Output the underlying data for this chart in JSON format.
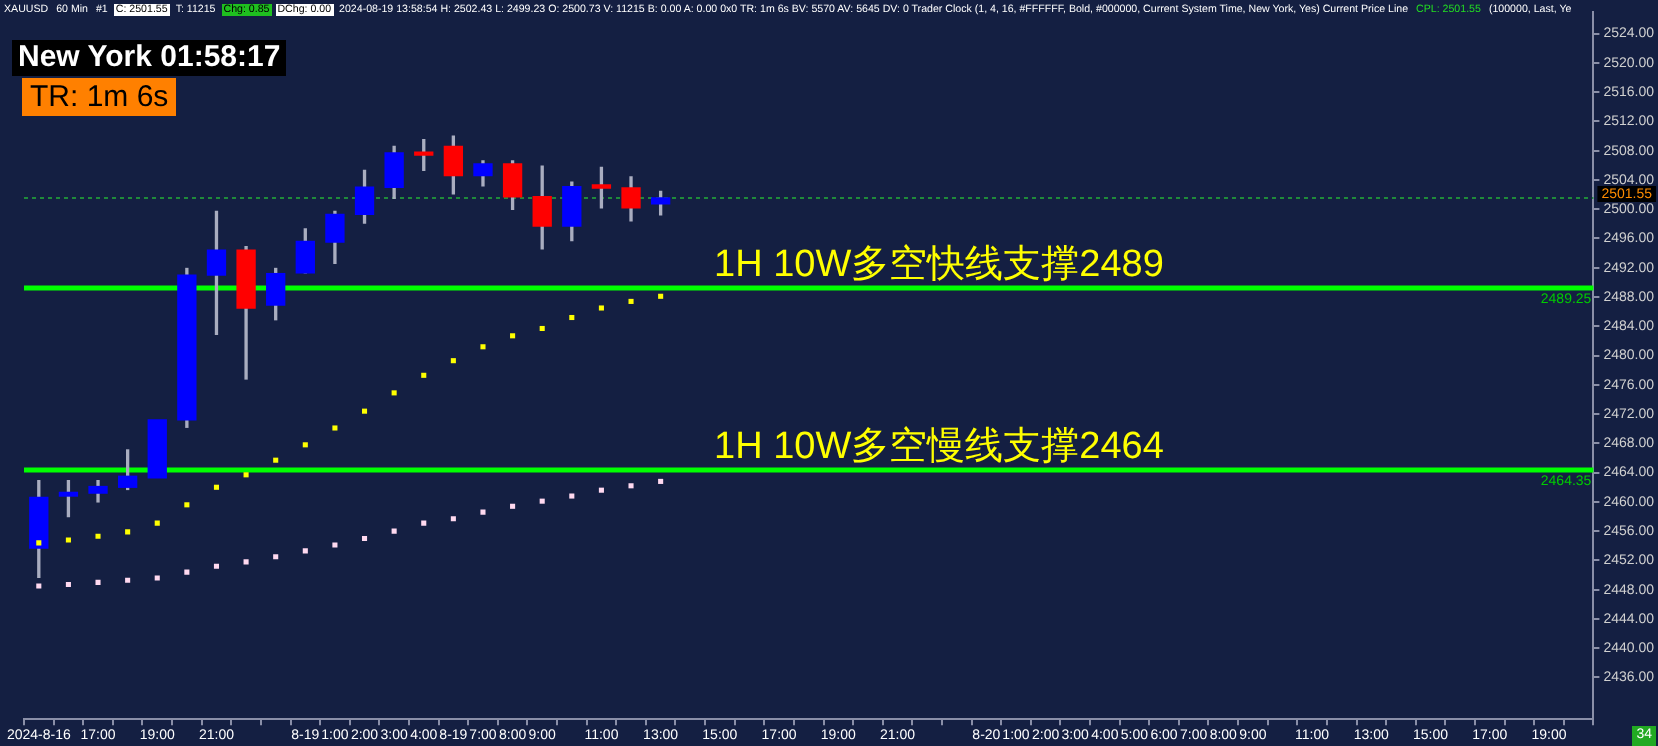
{
  "chart_data": {
    "type": "candlestick",
    "categories": [
      "2024-8-16",
      null,
      "17:00",
      null,
      "19:00",
      null,
      "21:00",
      null,
      null,
      "8-19",
      "1:00",
      "2:00",
      "3:00",
      "4:00",
      "8-19",
      "7:00",
      "8:00",
      "9:00",
      null,
      "11:00",
      null,
      "13:00",
      null,
      "15:00",
      null,
      "17:00",
      null,
      "19:00",
      null,
      "21:00",
      null,
      null,
      "8-20",
      "1:00",
      "2:00",
      "3:00",
      "4:00",
      "5:00",
      "6:00",
      "7:00",
      "8:00",
      "9:00",
      null,
      "11:00",
      null,
      "13:00",
      null,
      "15:00",
      null,
      "17:00",
      null,
      "19:00",
      null
    ],
    "ohlc": [
      [
        2453.7,
        2462.9,
        2449.7,
        2460.6
      ],
      [
        2460.8,
        2462.9,
        2458.0,
        2461.3
      ],
      [
        2461.2,
        2462.9,
        2460.0,
        2462.1
      ],
      [
        2462.0,
        2467.1,
        2461.7,
        2463.5
      ],
      [
        2463.3,
        2471.2,
        2463.3,
        2471.2
      ],
      [
        2471.2,
        2491.9,
        2470.2,
        2491.0
      ],
      [
        2491.0,
        2499.7,
        2482.9,
        2494.4
      ],
      [
        2494.4,
        2494.9,
        2476.8,
        2486.5
      ],
      [
        2486.9,
        2491.9,
        2484.9,
        2491.2
      ],
      [
        2491.3,
        2497.3,
        2491.3,
        2495.6
      ],
      [
        2495.5,
        2499.7,
        2492.6,
        2499.3
      ],
      [
        2499.3,
        2505.3,
        2498.1,
        2503.0
      ],
      [
        2503.0,
        2508.6,
        2501.5,
        2507.7
      ],
      [
        2507.8,
        2509.5,
        2505.3,
        2507.4
      ],
      [
        2508.6,
        2510.0,
        2502.1,
        2504.6
      ],
      [
        2504.6,
        2506.6,
        2503.2,
        2506.2
      ],
      [
        2506.2,
        2506.6,
        2500.0,
        2501.7
      ],
      [
        2501.7,
        2505.9,
        2494.6,
        2497.7
      ],
      [
        2497.7,
        2503.7,
        2495.7,
        2503.1
      ],
      [
        2503.2,
        2505.7,
        2500.2,
        2502.9
      ],
      [
        2502.9,
        2504.4,
        2498.4,
        2500.2
      ],
      [
        2500.73,
        2502.43,
        2499.23,
        2501.55
      ],
      null,
      null,
      null,
      null,
      null,
      null,
      null,
      null,
      null,
      null,
      null,
      null,
      null,
      null,
      null,
      null,
      null,
      null,
      null,
      null,
      null,
      null,
      null,
      null,
      null,
      null,
      null,
      null,
      null,
      null,
      null
    ],
    "colors": [
      "#0000ff",
      "#0000ff",
      "#0000ff",
      "#0000ff",
      "#0000ff",
      "#0000ff",
      "#0000ff",
      "#ff0000",
      "#0000ff",
      "#0000ff",
      "#0000ff",
      "#0000ff",
      "#0000ff",
      "#ff0000",
      "#ff0000",
      "#0000ff",
      "#ff0000",
      "#ff0000",
      "#0000ff",
      "#ff0000",
      "#ff0000",
      "#0000ff",
      null,
      null,
      null,
      null,
      null,
      null,
      null,
      null,
      null,
      null,
      null,
      null,
      null,
      null,
      null,
      null,
      null,
      null,
      null,
      null,
      null,
      null,
      null,
      null,
      null,
      null,
      null,
      null,
      null,
      null,
      null
    ],
    "series": [
      {
        "type": "scatter",
        "color": "#ffff00",
        "values": [
          2454.4,
          2454.8,
          2455.3,
          2455.9,
          2457.1,
          2459.6,
          2462.0,
          2463.7,
          2465.7,
          2467.8,
          2470.1,
          2472.4,
          2474.9,
          2477.3,
          2479.3,
          2481.2,
          2482.7,
          2483.7,
          2485.2,
          2486.5,
          2487.4,
          2488.1,
          null,
          null,
          null,
          null,
          null,
          null,
          null,
          null,
          null,
          null,
          null,
          null,
          null,
          null,
          null,
          null,
          null,
          null,
          null,
          null,
          null,
          null,
          null,
          null,
          null,
          null,
          null,
          null,
          null,
          null,
          null
        ]
      },
      {
        "type": "scatter",
        "color": "#ffd9f0",
        "values": [
          2448.5,
          2448.7,
          2449.0,
          2449.3,
          2449.6,
          2450.4,
          2451.2,
          2451.8,
          2452.5,
          2453.3,
          2454.1,
          2455.0,
          2456.0,
          2457.1,
          2457.7,
          2458.6,
          2459.4,
          2460.1,
          2460.8,
          2461.6,
          2462.2,
          2462.8,
          null,
          null,
          null,
          null,
          null,
          null,
          null,
          null,
          null,
          null,
          null,
          null,
          null,
          null,
          null,
          null,
          null,
          null,
          null,
          null,
          null,
          null,
          null,
          null,
          null,
          null,
          null,
          null,
          null,
          null,
          null
        ]
      }
    ],
    "marker": "square",
    "ylim": [
      2430.3,
      2526.9
    ],
    "yticks": [
      {
        "value": 2436,
        "label": "2436.00"
      },
      {
        "value": 2440,
        "label": "2440.00"
      },
      {
        "value": 2444,
        "label": "2444.00"
      },
      {
        "value": 2448,
        "label": "2448.00"
      },
      {
        "value": 2452,
        "label": "2452.00"
      },
      {
        "value": 2456,
        "label": "2456.00"
      },
      {
        "value": 2460,
        "label": "2460.00"
      },
      {
        "value": 2464,
        "label": "2464.00"
      },
      {
        "value": 2468,
        "label": "2468.00"
      },
      {
        "value": 2472,
        "label": "2472.00"
      },
      {
        "value": 2476,
        "label": "2476.00"
      },
      {
        "value": 2480,
        "label": "2480.00"
      },
      {
        "value": 2484,
        "label": "2484.00"
      },
      {
        "value": 2488,
        "label": "2488.00"
      },
      {
        "value": 2492,
        "label": "2492.00"
      },
      {
        "value": 2496,
        "label": "2496.00"
      },
      {
        "value": 2500,
        "label": "2500.00"
      },
      {
        "value": 2504,
        "label": "2504.00"
      },
      {
        "value": 2508,
        "label": "2508.00"
      },
      {
        "value": 2512,
        "label": "2512.00"
      },
      {
        "value": 2516,
        "label": "2516.00"
      },
      {
        "value": 2520,
        "label": "2520.00"
      },
      {
        "value": 2524,
        "label": "2524.00"
      }
    ],
    "ref_lines": [
      {
        "axis": "y",
        "value": 2489.25,
        "label": "1H 10W多空快线支撑2489",
        "color": "#00ff00"
      },
      {
        "axis": "y",
        "value": 2464.35,
        "label": "1H 10W多空慢线支撑2464",
        "color": "#00ff00"
      },
      {
        "axis": "y",
        "value": 2501.55,
        "label": "2501.55",
        "color": "#1f8a3a",
        "line_style": "dotted"
      }
    ],
    "annotations": [
      "XAUUSD",
      "60 Min",
      "#1",
      "C: 2501.55",
      "T: 11215",
      "Chg: 0.85",
      "DChg: 0.00",
      "2024-08-19 13:58:54 H: 2502.43 L: 2499.23 O: 2500.73 V: 11215 B: 0.00 A: 0.00 0x0 TR: 1m 6s BV: 5570 AV: 5645 DV: 0 Trader Clock (1, 4, 16, #FFFFFF, Bold, #000000, Current System Time, New York, Yes) Current Price Line",
      "CPL: 2501.55",
      "(100000, Last, Ye",
      "New York 01:58:17",
      "TR: 1m 6s",
      "34",
      {
        "text": "2489.25",
        "y": 2489.25
      },
      {
        "text": "2464.35",
        "y": 2464.35
      }
    ]
  }
}
